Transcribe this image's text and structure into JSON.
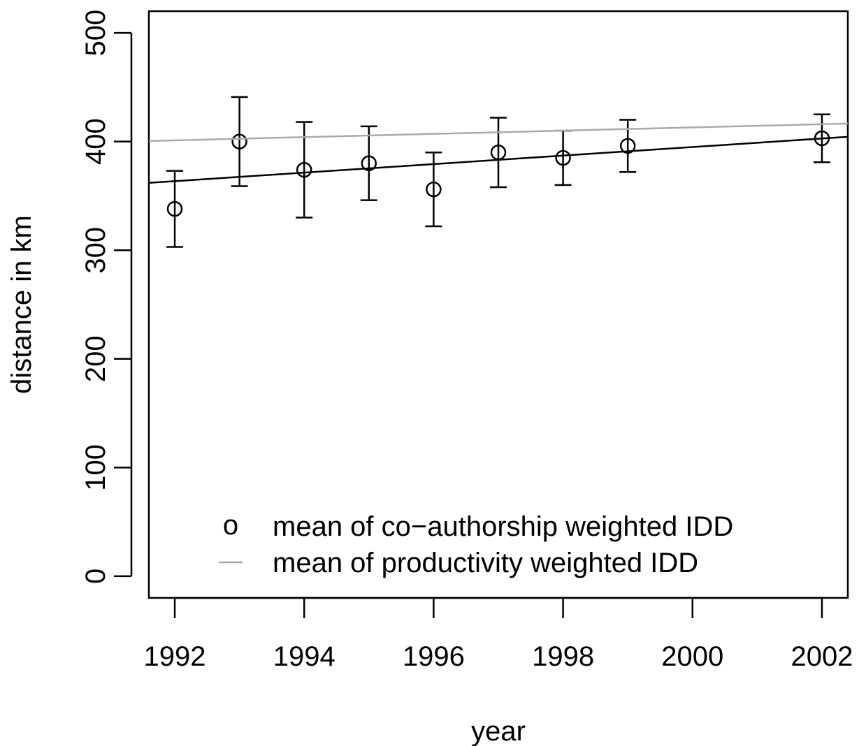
{
  "chart_data": {
    "type": "errorbar",
    "xlabel": "year",
    "ylabel": "distance in km",
    "xlim": [
      1991.6,
      2002.4
    ],
    "ylim": [
      -20,
      520
    ],
    "xticks": [
      1992,
      1994,
      1996,
      1998,
      2000,
      2002
    ],
    "yticks": [
      0,
      100,
      200,
      300,
      400,
      500
    ],
    "series": [
      {
        "name": "mean of co−authorship weighted IDD",
        "marker": "o",
        "color": "#000000",
        "x": [
          1992,
          1993,
          1994,
          1995,
          1996,
          1997,
          1998,
          1999,
          2002
        ],
        "values": [
          338,
          400,
          374,
          380,
          356,
          390,
          385,
          396,
          403
        ],
        "errors": [
          35,
          41,
          44,
          34,
          34,
          32,
          25,
          24,
          22
        ]
      },
      {
        "color": "#000000",
        "x": [
          1991.6,
          2002.4
        ],
        "values": [
          362,
          404.4
        ]
      },
      {
        "name": "mean of productivity weighted IDD",
        "color": "#aaaaaa",
        "x": [
          1991.6,
          2002.4
        ],
        "values": [
          400.5,
          416.6
        ]
      }
    ],
    "legend": "bottom"
  }
}
